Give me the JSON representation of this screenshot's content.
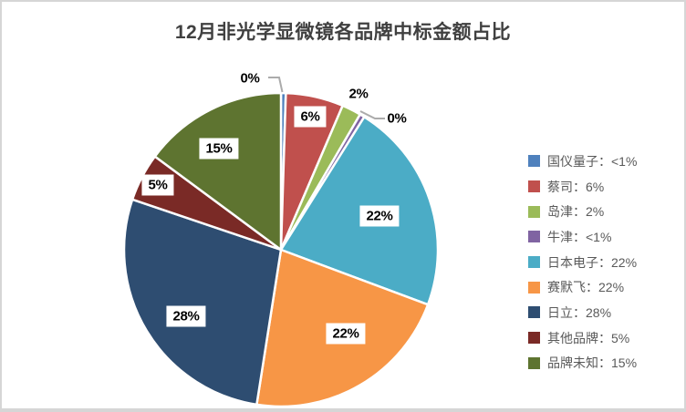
{
  "window": {
    "background": "#ffffff",
    "border_color": "#d6d6d6"
  },
  "chart_data": {
    "type": "pie",
    "title": "12月非光学显微镜各品牌中标金额占比",
    "title_color": "#404040",
    "categories": [
      "国仪量子",
      "蔡司",
      "岛津",
      "牛津",
      "日本电子",
      "赛默飞",
      "日立",
      "其他品牌",
      "品牌未知"
    ],
    "values": [
      0.5,
      6,
      2,
      0.5,
      22,
      22,
      28,
      5,
      15
    ],
    "display_values": [
      "<1%",
      "6%",
      "2%",
      "<1%",
      "22%",
      "22%",
      "28%",
      "5%",
      "15%"
    ],
    "slice_labels": [
      "0%",
      "6%",
      "2%",
      "0%",
      "22%",
      "22%",
      "28%",
      "5%",
      "15%"
    ],
    "colors": [
      "#4F81BD",
      "#C0504D",
      "#9BBB59",
      "#8064A2",
      "#4BACC6",
      "#F79646",
      "#2E4D71",
      "#7A2A26",
      "#5E7430"
    ],
    "legend_labels": [
      "国仪量子：<1%",
      "蔡司：6%",
      "岛津：2%",
      "牛津：<1%",
      "日本电子：22%",
      "赛默飞：22%",
      "日立：28%",
      "其他品牌：5%",
      "品牌未知：15%"
    ],
    "legend_position": "right",
    "legend_text_color": "#595959",
    "label_text_color": "#000000",
    "leader_line_color": "#ababab",
    "slice_border_color": "#ffffff",
    "start_angle_deg": 0,
    "direction": "clockwise"
  }
}
